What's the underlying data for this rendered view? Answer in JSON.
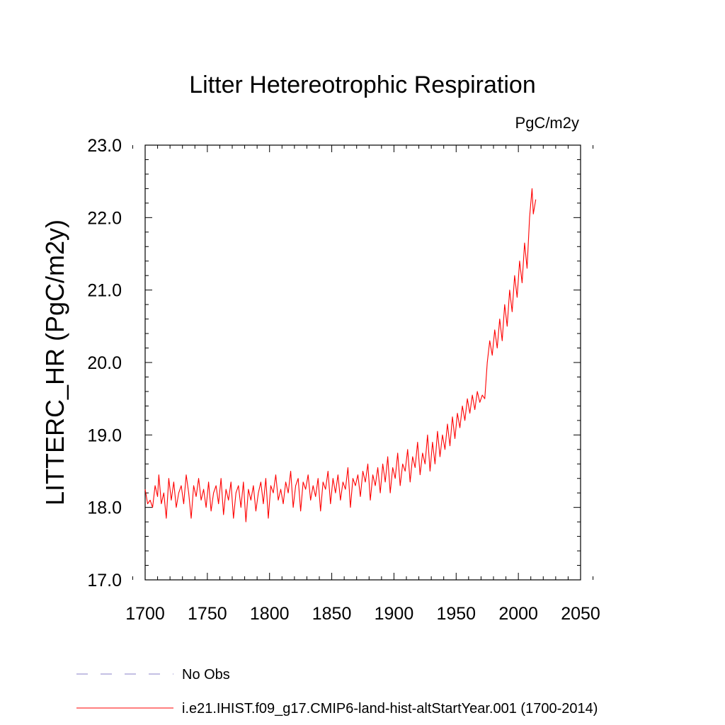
{
  "chart_data": {
    "type": "line",
    "title": "Litter Hetereotrophic Respiration",
    "units_label": "PgC/m2y",
    "ylabel": "LITTERC_HR  (PgC/m2y)",
    "xlabel": "",
    "xlim": [
      1700,
      2050
    ],
    "ylim": [
      17.0,
      23.0
    ],
    "xticks": [
      1700,
      1750,
      1800,
      1850,
      1900,
      1950,
      2000,
      2050
    ],
    "xtick_labels": [
      "1700",
      "1750",
      "1800",
      "1850",
      "1900",
      "1950",
      "2000",
      "2050"
    ],
    "yticks": [
      17.0,
      18.0,
      19.0,
      20.0,
      21.0,
      22.0,
      23.0
    ],
    "ytick_labels": [
      "17.0",
      "18.0",
      "19.0",
      "20.0",
      "21.0",
      "22.0",
      "23.0"
    ],
    "grid": false,
    "legend_placement": "bottom",
    "series": [
      {
        "name": "No Obs",
        "style": "dashed",
        "color": "#8a82c8",
        "x": [],
        "y": []
      },
      {
        "name": "i.e21.IHIST.f09_g17.CMIP6-land-hist-altStartYear.001 (1700-2014)",
        "style": "solid",
        "color": "#ff0000",
        "x": [
          1700,
          1702,
          1704,
          1706,
          1708,
          1710,
          1711,
          1713,
          1715,
          1717,
          1719,
          1721,
          1723,
          1725,
          1727,
          1729,
          1731,
          1733,
          1735,
          1737,
          1739,
          1741,
          1743,
          1745,
          1747,
          1749,
          1751,
          1753,
          1755,
          1757,
          1759,
          1761,
          1763,
          1765,
          1767,
          1769,
          1771,
          1773,
          1775,
          1777,
          1779,
          1781,
          1783,
          1785,
          1787,
          1789,
          1791,
          1793,
          1795,
          1797,
          1799,
          1801,
          1803,
          1805,
          1807,
          1809,
          1811,
          1813,
          1815,
          1817,
          1819,
          1821,
          1823,
          1825,
          1827,
          1829,
          1831,
          1833,
          1835,
          1837,
          1839,
          1841,
          1843,
          1845,
          1847,
          1849,
          1851,
          1853,
          1855,
          1857,
          1859,
          1861,
          1863,
          1865,
          1867,
          1869,
          1871,
          1873,
          1875,
          1877,
          1879,
          1881,
          1883,
          1885,
          1887,
          1889,
          1891,
          1893,
          1895,
          1897,
          1899,
          1901,
          1903,
          1905,
          1907,
          1909,
          1911,
          1913,
          1915,
          1917,
          1919,
          1921,
          1923,
          1925,
          1927,
          1929,
          1931,
          1933,
          1935,
          1937,
          1939,
          1941,
          1943,
          1945,
          1947,
          1949,
          1951,
          1953,
          1955,
          1957,
          1959,
          1961,
          1963,
          1965,
          1967,
          1969,
          1971,
          1973,
          1975,
          1977,
          1979,
          1981,
          1983,
          1985,
          1987,
          1989,
          1991,
          1993,
          1995,
          1997,
          1999,
          2001,
          2003,
          2005,
          2007,
          2009,
          2011,
          2012,
          2014
        ],
        "y": [
          18.25,
          18.05,
          18.1,
          18.0,
          18.3,
          18.15,
          18.45,
          18.05,
          18.2,
          17.85,
          18.4,
          18.1,
          18.35,
          18.0,
          18.2,
          18.3,
          18.05,
          18.45,
          18.2,
          17.85,
          18.3,
          18.15,
          18.4,
          18.1,
          18.25,
          18.0,
          18.35,
          17.95,
          18.2,
          18.3,
          18.05,
          18.4,
          17.9,
          18.25,
          18.1,
          18.35,
          17.85,
          18.2,
          18.3,
          18.0,
          18.35,
          17.8,
          18.25,
          18.1,
          18.3,
          17.95,
          18.2,
          18.35,
          18.05,
          18.4,
          17.85,
          18.3,
          18.2,
          18.45,
          18.1,
          18.25,
          18.05,
          18.35,
          18.2,
          18.5,
          18.0,
          18.3,
          18.4,
          17.95,
          18.35,
          18.25,
          18.45,
          18.1,
          18.3,
          18.15,
          18.4,
          17.95,
          18.35,
          18.25,
          18.5,
          18.05,
          18.4,
          18.2,
          18.45,
          18.1,
          18.35,
          18.25,
          18.55,
          18.0,
          18.4,
          18.3,
          18.45,
          18.15,
          18.5,
          18.35,
          18.6,
          18.1,
          18.45,
          18.3,
          18.55,
          18.2,
          18.6,
          18.35,
          18.7,
          18.2,
          18.55,
          18.4,
          18.75,
          18.3,
          18.6,
          18.5,
          18.8,
          18.35,
          18.7,
          18.55,
          18.9,
          18.45,
          18.75,
          18.6,
          19.0,
          18.5,
          18.9,
          18.6,
          19.05,
          18.7,
          19.0,
          18.8,
          19.15,
          18.85,
          19.25,
          18.95,
          19.3,
          19.1,
          19.4,
          19.2,
          19.5,
          19.3,
          19.55,
          19.35,
          19.6,
          19.45,
          19.55,
          19.5,
          20.0,
          20.3,
          20.1,
          20.45,
          20.2,
          20.6,
          20.3,
          20.8,
          20.5,
          21.0,
          20.7,
          21.2,
          20.9,
          21.4,
          21.1,
          21.65,
          21.3,
          22.0,
          22.4,
          22.05,
          22.25
        ]
      }
    ]
  }
}
